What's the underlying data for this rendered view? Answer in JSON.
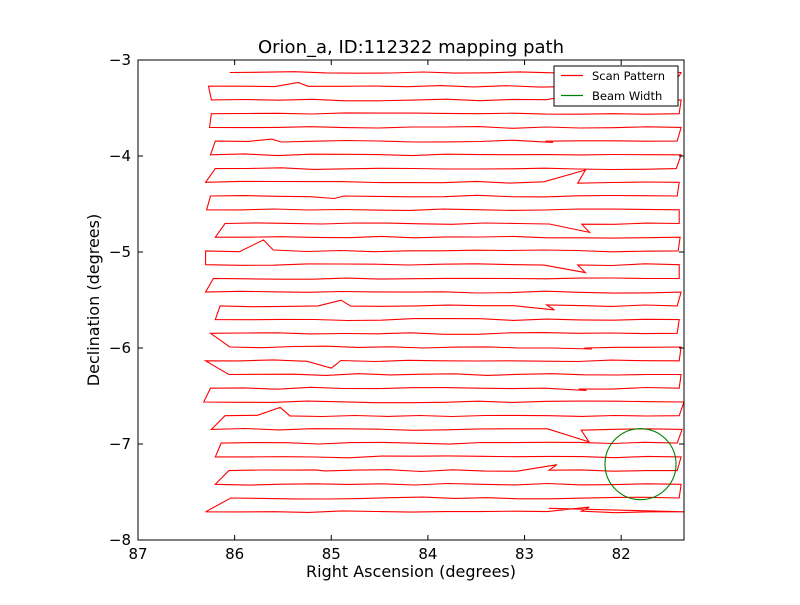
{
  "chart_data": {
    "type": "line",
    "title": "Orion_a, ID:112322 mapping path",
    "xlabel": "Right Ascension (degrees)",
    "ylabel": "Declination (degrees)",
    "xlim": [
      87.0,
      81.35
    ],
    "ylim": [
      -8.0,
      -3.0
    ],
    "x_ticks": [
      87,
      86,
      85,
      84,
      83,
      82
    ],
    "x_tick_labels": [
      "87",
      "86",
      "85",
      "84",
      "83",
      "82"
    ],
    "y_ticks": [
      -3,
      -4,
      -5,
      -6,
      -7,
      -8
    ],
    "y_tick_labels": [
      "−3",
      "−4",
      "−5",
      "−6",
      "−7",
      "−8"
    ],
    "grid": false,
    "legend": {
      "placement": "top-right"
    },
    "series": [
      {
        "name": "Scan Pattern",
        "color": "#ff0000",
        "mode": "raster",
        "dec_start": -3.13,
        "dec_step": -0.143,
        "row_count": 33,
        "x_left": [
          86.05,
          86.27,
          86.24,
          86.24,
          86.26,
          86.2,
          86.25,
          86.2,
          86.3,
          86.25,
          86.29,
          86.1,
          86.2,
          86.3,
          86.3,
          86.22,
          86.3,
          86.15,
          86.2,
          86.25,
          86.05,
          86.3,
          86.06,
          86.25,
          86.32,
          86.1,
          86.24,
          86.14,
          86.2,
          86.06,
          86.2,
          86.04,
          86.3
        ],
        "x_right": [
          81.38,
          81.47,
          81.38,
          81.4,
          81.38,
          81.42,
          81.38,
          81.43,
          81.4,
          81.42,
          81.4,
          81.4,
          81.39,
          81.41,
          81.4,
          81.4,
          81.38,
          81.42,
          81.4,
          81.42,
          81.38,
          81.4,
          81.38,
          81.4,
          81.35,
          81.4,
          81.37,
          81.42,
          81.38,
          81.42,
          81.38,
          81.4,
          81.35
        ],
        "end_point": [
          82.75,
          -7.67
        ]
      },
      {
        "name": "Beam Width",
        "color": "#008000",
        "mode": "circle",
        "center": [
          81.8,
          -7.21
        ],
        "radius_dec": 0.37
      }
    ]
  }
}
